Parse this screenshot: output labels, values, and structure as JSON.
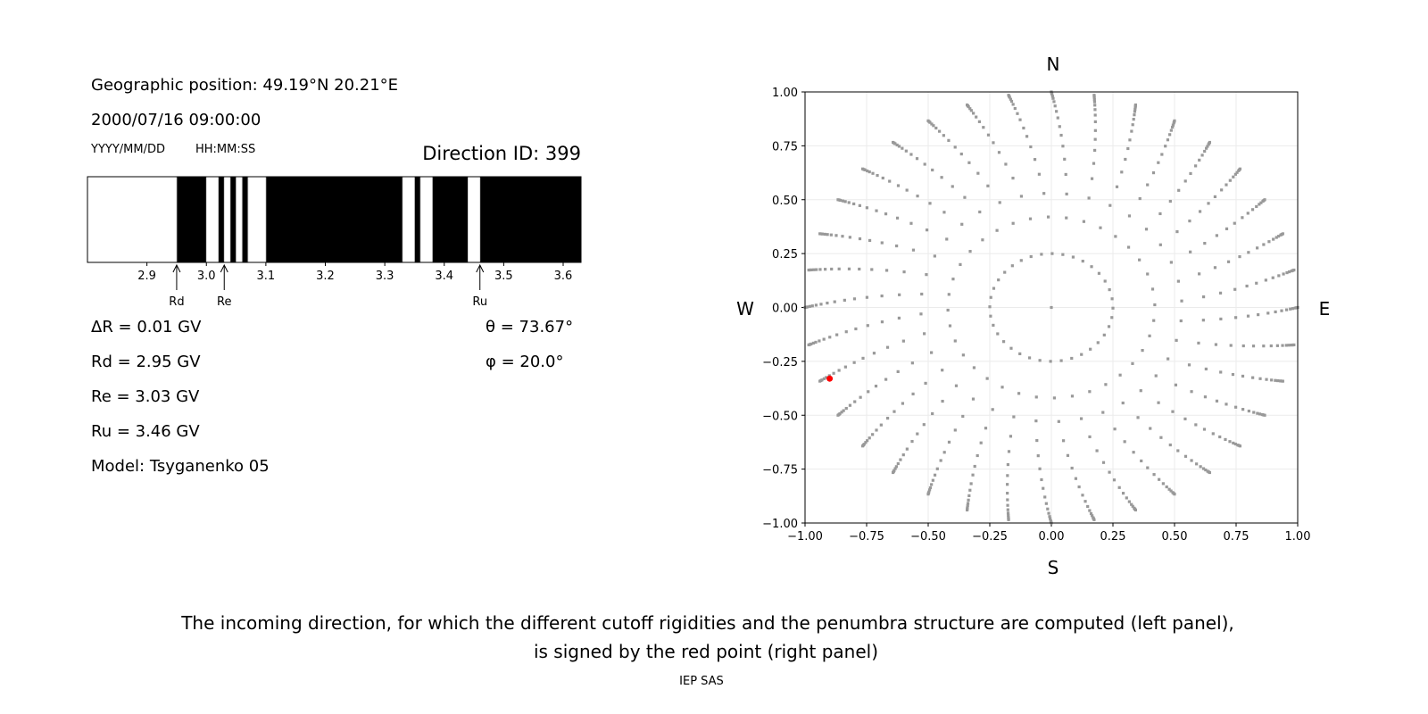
{
  "left_panel": {
    "geo_position": "Geographic position: 49.19°N 20.21°E",
    "datetime": "2000/07/16 09:00:00",
    "date_format": "YYYY/MM/DD",
    "time_format": "HH:MM:SS",
    "direction_id": "Direction ID: 399",
    "delta_r": "ΔR = 0.01 GV",
    "rd": "Rd = 2.95 GV",
    "re": "Re = 3.03 GV",
    "ru": "Ru = 3.46 GV",
    "model": "Model: Tsyganenko 05",
    "theta": "θ = 73.67°",
    "phi": "φ = 20.0°"
  },
  "chart_data": [
    {
      "type": "bar",
      "description_kind": "penumbra",
      "xlim": [
        2.8,
        3.63
      ],
      "xticks": [
        "2.9",
        "3.0",
        "3.1",
        "3.2",
        "3.3",
        "3.4",
        "3.5",
        "3.6"
      ],
      "allowed_color": "#ffffff",
      "forbidden_color": "#000000",
      "allowed_intervals": [
        [
          2.8,
          2.95
        ],
        [
          3.0,
          3.02
        ],
        [
          3.03,
          3.04
        ],
        [
          3.05,
          3.06
        ],
        [
          3.07,
          3.1
        ],
        [
          3.33,
          3.35
        ],
        [
          3.36,
          3.38
        ],
        [
          3.44,
          3.46
        ]
      ],
      "markers": [
        {
          "label": "Rd",
          "value": 2.95
        },
        {
          "label": "Re",
          "value": 3.03
        },
        {
          "label": "Ru",
          "value": 3.46
        }
      ]
    },
    {
      "type": "scatter",
      "xlim": [
        -1,
        1
      ],
      "ylim": [
        -1,
        1
      ],
      "xticks": [
        "−1.00",
        "−0.75",
        "−0.50",
        "−0.25",
        "0.00",
        "0.25",
        "0.50",
        "0.75",
        "1.00"
      ],
      "yticks": [
        "−1.00",
        "−0.75",
        "−0.50",
        "−0.25",
        "0.00",
        "0.25",
        "0.50",
        "0.75",
        "1.00"
      ],
      "grid": true,
      "compass": {
        "north": "N",
        "south": "S",
        "west": "W",
        "east": "E"
      },
      "point_color": "#999999",
      "highlight_color": "#ff0000",
      "ray_azimuths_deg_step": 10,
      "ray_radii": [
        0.25,
        0.42,
        0.53,
        0.62,
        0.69,
        0.75,
        0.8,
        0.84,
        0.88,
        0.91,
        0.935,
        0.955,
        0.97,
        0.98,
        0.99,
        0.995,
        1.0
      ],
      "center_point": [
        0,
        0
      ],
      "highlight_point": [
        -0.9,
        -0.33
      ]
    }
  ],
  "caption": {
    "line1": "The incoming direction, for which the different cutoff rigidities and the penumbra structure are computed (left panel),",
    "line2": "is signed by the red point (right panel)",
    "credit": "IEP SAS"
  }
}
